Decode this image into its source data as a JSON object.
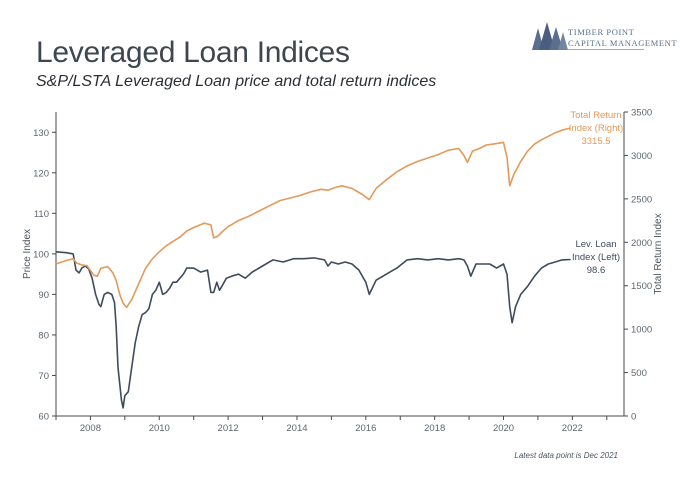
{
  "header": {
    "title": "Leveraged Loan Indices",
    "subtitle": "S&P/LSTA Leveraged Loan price and total return indices"
  },
  "logo": {
    "line1": "Timber Point",
    "line2": "Capital Management",
    "icon": "pine-trees-icon"
  },
  "footnote": "Latest data point is Dec 2021",
  "colors": {
    "price": "#3f4b5c",
    "total_return": "#e39a5a",
    "axis": "#4a4a4a"
  },
  "chart_data": {
    "type": "line",
    "title": "",
    "xlabel": "",
    "ylabel": "Price Index",
    "ylabel_right": "Total Return Index",
    "xlim": [
      2007.0,
      2023.5
    ],
    "ylim": [
      60,
      135
    ],
    "ylim_right": [
      0,
      3500
    ],
    "x_ticks": [
      2008,
      2010,
      2012,
      2014,
      2016,
      2018,
      2020,
      2022
    ],
    "y_ticks": [
      60,
      70,
      80,
      90,
      100,
      110,
      120,
      130
    ],
    "y_ticks_right": [
      0,
      500,
      1000,
      1500,
      2000,
      2500,
      3000,
      3500
    ],
    "grid": false,
    "legend": "none",
    "annotations": {
      "total_return": {
        "label_line1": "Total Return",
        "label_line2": "Index (Right)",
        "value": "3315.5"
      },
      "price": {
        "label_line1": "Lev. Loan",
        "label_line2": "Index (Left)",
        "value": "98.6"
      }
    },
    "series": [
      {
        "name": "Lev. Loan Index (Left)",
        "axis": "left",
        "x": [
          2007.0,
          2007.3,
          2007.5,
          2007.58,
          2007.67,
          2007.75,
          2007.85,
          2007.95,
          2008.05,
          2008.15,
          2008.25,
          2008.3,
          2008.4,
          2008.5,
          2008.62,
          2008.7,
          2008.75,
          2008.8,
          2008.85,
          2008.9,
          2008.95,
          2009.0,
          2009.05,
          2009.1,
          2009.2,
          2009.3,
          2009.4,
          2009.5,
          2009.6,
          2009.7,
          2009.8,
          2009.9,
          2010.0,
          2010.1,
          2010.2,
          2010.3,
          2010.4,
          2010.5,
          2010.6,
          2010.7,
          2010.8,
          2011.0,
          2011.2,
          2011.4,
          2011.5,
          2011.58,
          2011.67,
          2011.75,
          2011.85,
          2011.95,
          2012.1,
          2012.3,
          2012.5,
          2012.7,
          2013.0,
          2013.3,
          2013.6,
          2013.9,
          2014.2,
          2014.5,
          2014.8,
          2014.9,
          2015.0,
          2015.2,
          2015.4,
          2015.6,
          2015.8,
          2016.0,
          2016.1,
          2016.3,
          2016.6,
          2016.9,
          2017.2,
          2017.5,
          2017.8,
          2018.1,
          2018.4,
          2018.7,
          2018.85,
          2018.95,
          2019.05,
          2019.2,
          2019.4,
          2019.6,
          2019.8,
          2020.0,
          2020.1,
          2020.18,
          2020.25,
          2020.35,
          2020.5,
          2020.7,
          2020.9,
          2021.1,
          2021.3,
          2021.5,
          2021.7,
          2021.95
        ],
        "values": [
          100.5,
          100.3,
          100.0,
          96.0,
          95.3,
          96.5,
          97.0,
          96.3,
          94.0,
          90.0,
          87.5,
          87.0,
          90.0,
          90.5,
          90.0,
          88.0,
          82.0,
          72.0,
          68.0,
          64.0,
          62.0,
          65.0,
          65.5,
          66.0,
          72.0,
          78.0,
          82.0,
          85.0,
          85.5,
          86.5,
          90.0,
          91.0,
          93.0,
          90.0,
          90.5,
          91.5,
          93.0,
          93.0,
          94.0,
          95.0,
          96.5,
          96.5,
          95.5,
          96.0,
          90.5,
          90.5,
          93.0,
          91.0,
          92.5,
          94.0,
          94.5,
          95.0,
          94.0,
          95.5,
          97.0,
          98.5,
          98.0,
          98.8,
          98.8,
          99.0,
          98.5,
          97.0,
          98.0,
          97.5,
          98.0,
          97.5,
          96.0,
          93.0,
          90.0,
          93.5,
          95.0,
          96.5,
          98.5,
          98.8,
          98.5,
          98.8,
          98.5,
          98.8,
          98.5,
          97.0,
          94.5,
          97.5,
          97.5,
          97.5,
          96.5,
          97.5,
          95.0,
          87.0,
          83.0,
          87.0,
          90.0,
          92.0,
          94.5,
          96.5,
          97.5,
          98.0,
          98.5,
          98.6
        ]
      },
      {
        "name": "Total Return Index (Right)",
        "axis": "right",
        "x": [
          2007.0,
          2007.3,
          2007.5,
          2007.6,
          2007.75,
          2007.9,
          2008.1,
          2008.2,
          2008.3,
          2008.5,
          2008.65,
          2008.75,
          2008.85,
          2008.95,
          2009.05,
          2009.2,
          2009.4,
          2009.6,
          2009.8,
          2010.0,
          2010.2,
          2010.4,
          2010.6,
          2010.8,
          2011.0,
          2011.3,
          2011.5,
          2011.58,
          2011.7,
          2011.85,
          2012.0,
          2012.3,
          2012.6,
          2012.9,
          2013.2,
          2013.5,
          2013.8,
          2014.1,
          2014.4,
          2014.7,
          2014.9,
          2015.1,
          2015.3,
          2015.6,
          2015.9,
          2016.1,
          2016.3,
          2016.6,
          2016.9,
          2017.2,
          2017.5,
          2017.8,
          2018.1,
          2018.4,
          2018.7,
          2018.85,
          2018.95,
          2019.1,
          2019.3,
          2019.5,
          2019.7,
          2020.0,
          2020.1,
          2020.18,
          2020.3,
          2020.5,
          2020.7,
          2020.9,
          2021.1,
          2021.3,
          2021.5,
          2021.7,
          2021.95
        ],
        "values": [
          1750,
          1790,
          1810,
          1760,
          1740,
          1730,
          1620,
          1610,
          1700,
          1720,
          1650,
          1560,
          1400,
          1300,
          1250,
          1340,
          1520,
          1700,
          1810,
          1890,
          1960,
          2010,
          2060,
          2130,
          2170,
          2220,
          2200,
          2050,
          2070,
          2130,
          2180,
          2250,
          2300,
          2360,
          2420,
          2480,
          2510,
          2540,
          2580,
          2610,
          2600,
          2630,
          2650,
          2620,
          2550,
          2490,
          2620,
          2720,
          2810,
          2880,
          2930,
          2970,
          3010,
          3060,
          3080,
          3000,
          2920,
          3050,
          3080,
          3120,
          3130,
          3150,
          2980,
          2650,
          2780,
          2930,
          3050,
          3130,
          3180,
          3220,
          3260,
          3290,
          3315.5
        ]
      }
    ]
  }
}
